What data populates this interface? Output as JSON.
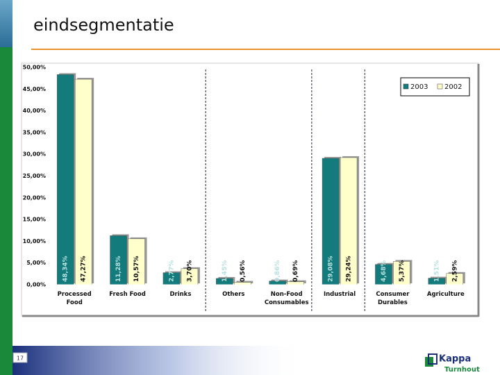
{
  "slide": {
    "title": "eindsegmentatie",
    "page_number": "17",
    "logo": {
      "name": "Kappa",
      "place": "Turnhout"
    }
  },
  "chart_data": {
    "type": "bar",
    "categories": [
      "Processed Food",
      "Fresh Food",
      "Drinks",
      "Others",
      "Non-Food Consumables",
      "Industrial",
      "Consumer Durables",
      "Agriculture"
    ],
    "series": [
      {
        "name": "2003",
        "color": "#137b7b",
        "values": [
          48.34,
          11.28,
          2.77,
          1.45,
          0.86,
          29.08,
          4.68,
          1.51
        ],
        "value_labels": [
          "48,34%",
          "11,28%",
          "2,77%",
          "1,45%",
          "0,86%",
          "29,08%",
          "4,68%",
          "1,51%"
        ]
      },
      {
        "name": "2002",
        "color": "#ffffcc",
        "values": [
          47.27,
          10.57,
          3.7,
          0.56,
          0.69,
          29.24,
          5.37,
          2.59
        ],
        "value_labels": [
          "47,27%",
          "10,57%",
          "3,70%",
          "0,56%",
          "0,69%",
          "29,24%",
          "5,37%",
          "2,59%"
        ]
      }
    ],
    "ylim": [
      0,
      50
    ],
    "yticks": [
      {
        "value": 0,
        "label": "0,00%"
      },
      {
        "value": 5,
        "label": "5,00%"
      },
      {
        "value": 10,
        "label": "10,00%"
      },
      {
        "value": 15,
        "label": "15,00%"
      },
      {
        "value": 20,
        "label": "20,00%"
      },
      {
        "value": 25,
        "label": "25,00%"
      },
      {
        "value": 30,
        "label": "30,00%"
      },
      {
        "value": 35,
        "label": "35,00%"
      },
      {
        "value": 40,
        "label": "40,00%"
      },
      {
        "value": 45,
        "label": "45,00%"
      },
      {
        "value": 50,
        "label": "50,00%"
      }
    ],
    "legend": "upper right"
  }
}
